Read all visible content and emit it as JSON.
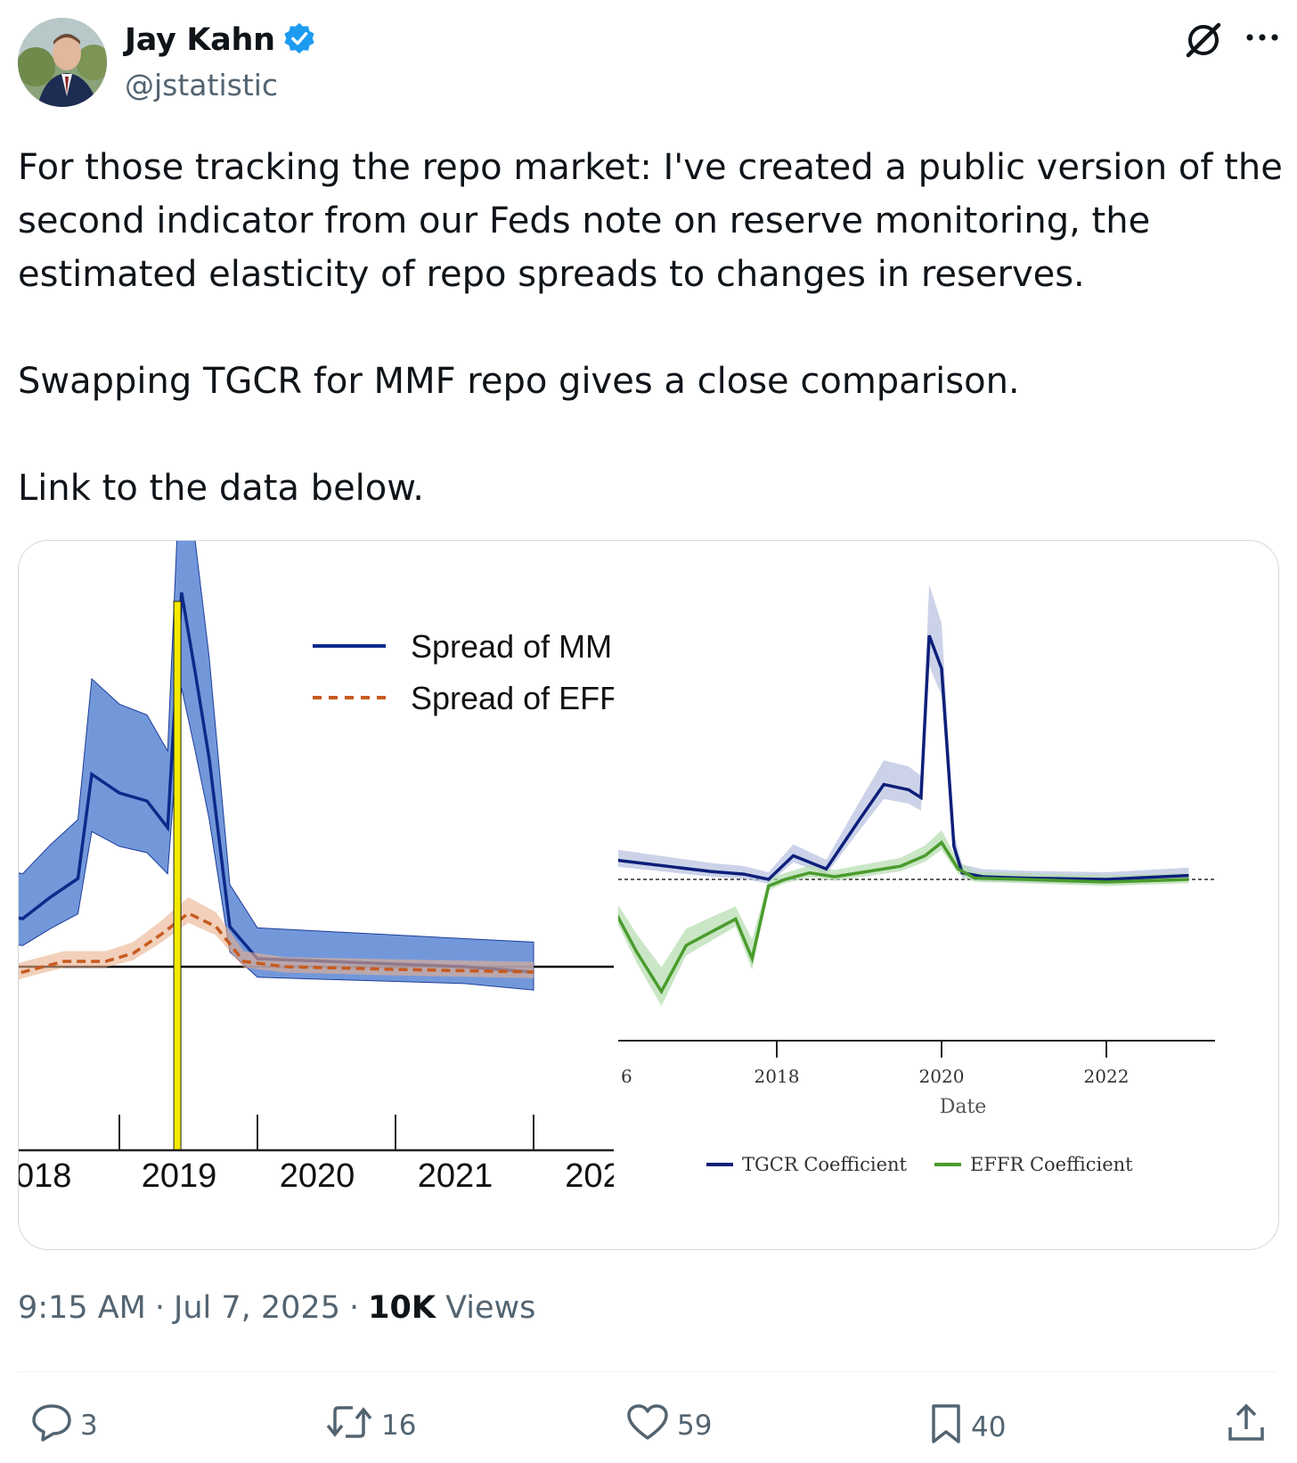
{
  "author": {
    "name": "Jay Kahn",
    "handle": "@jstatistic",
    "verified_color": "#1d9bf0"
  },
  "tweet": {
    "paragraphs": [
      "For those tracking the repo market: I've created a public version of the second indicator from our Feds note on reserve monitoring, the estimated elasticity of repo spreads to changes in reserves.",
      "Swapping TGCR for MMF repo gives a close comparison.",
      "Link to the data below."
    ],
    "time": "9:15 AM",
    "date": "Jul 7, 2025",
    "views_count": "10K",
    "views_label": "Views",
    "sep": "·"
  },
  "actions": {
    "replies": "3",
    "retweets": "16",
    "likes": "59",
    "bookmarks": "40"
  },
  "icons": [
    "profile-avatar",
    "verified-badge-icon",
    "grok-icon",
    "more-icon",
    "reply-icon",
    "retweet-icon",
    "like-icon",
    "bookmark-icon",
    "share-icon"
  ],
  "chart_data": [
    {
      "type": "line",
      "title": "",
      "x_ticks": [
        "018",
        "2019",
        "2020",
        "2021",
        "202"
      ],
      "series": [
        {
          "name": "Spread of MMI",
          "style": "solid",
          "color": "#0d2a8a",
          "band_color": "#5a86d4",
          "x": [
            2018.0,
            2018.3,
            2018.5,
            2018.7,
            2018.8,
            2019.0,
            2019.2,
            2019.35,
            2019.45,
            2019.55,
            2019.65,
            2019.8,
            2020.0,
            2020.5,
            2021.0,
            2021.5,
            2022.0
          ],
          "y": [
            0.2,
            0.18,
            0.26,
            0.33,
            0.72,
            0.65,
            0.62,
            0.52,
            1.4,
            1.1,
            0.78,
            0.15,
            0.03,
            0.02,
            0.01,
            0.0,
            -0.02
          ]
        },
        {
          "name": "Spread of EFFI",
          "style": "dashed",
          "color": "#c75b1f",
          "band_color": "#e9b08e",
          "x": [
            2018.0,
            2018.3,
            2018.6,
            2018.9,
            2019.1,
            2019.3,
            2019.5,
            2019.7,
            2019.9,
            2020.2,
            2021.0,
            2022.0
          ],
          "y": [
            -0.08,
            -0.02,
            0.02,
            0.02,
            0.05,
            0.12,
            0.2,
            0.15,
            0.02,
            0.0,
            -0.01,
            -0.02
          ]
        }
      ],
      "vline_x": 2019.42,
      "vline_color": "#f5ea00"
    },
    {
      "type": "line",
      "xlabel": "Date",
      "x_ticks": [
        "6",
        "2018",
        "2020",
        "2022"
      ],
      "series": [
        {
          "name": "TGCR Coefficient",
          "color": "#0d1f7a",
          "band_color": "#b7c0e0",
          "x": [
            2016.0,
            2016.4,
            2016.8,
            2017.2,
            2017.6,
            2017.9,
            2018.2,
            2018.6,
            2019.0,
            2019.3,
            2019.6,
            2019.75,
            2019.85,
            2020.0,
            2020.15,
            2020.25,
            2020.5,
            2021.0,
            2022.0,
            2023.0
          ],
          "y": [
            0.15,
            0.12,
            0.09,
            0.06,
            0.04,
            0.0,
            0.18,
            0.08,
            0.45,
            0.72,
            0.68,
            0.62,
            1.85,
            1.6,
            0.25,
            0.05,
            0.02,
            0.01,
            0.0,
            0.03
          ]
        },
        {
          "name": "EFFR Coefficient",
          "color": "#4a9c2d",
          "band_color": "#b4dcae",
          "x": [
            2016.0,
            2016.3,
            2016.6,
            2016.9,
            2017.2,
            2017.5,
            2017.7,
            2017.9,
            2018.1,
            2018.4,
            2018.7,
            2019.0,
            2019.5,
            2019.8,
            2020.0,
            2020.2,
            2020.4,
            2021.0,
            2022.0,
            2023.0
          ],
          "y": [
            -0.2,
            -0.55,
            -0.85,
            -0.5,
            -0.4,
            -0.3,
            -0.6,
            -0.05,
            0.0,
            0.05,
            0.02,
            0.05,
            0.1,
            0.18,
            0.28,
            0.08,
            0.01,
            0.0,
            -0.02,
            0.0
          ]
        }
      ]
    }
  ]
}
